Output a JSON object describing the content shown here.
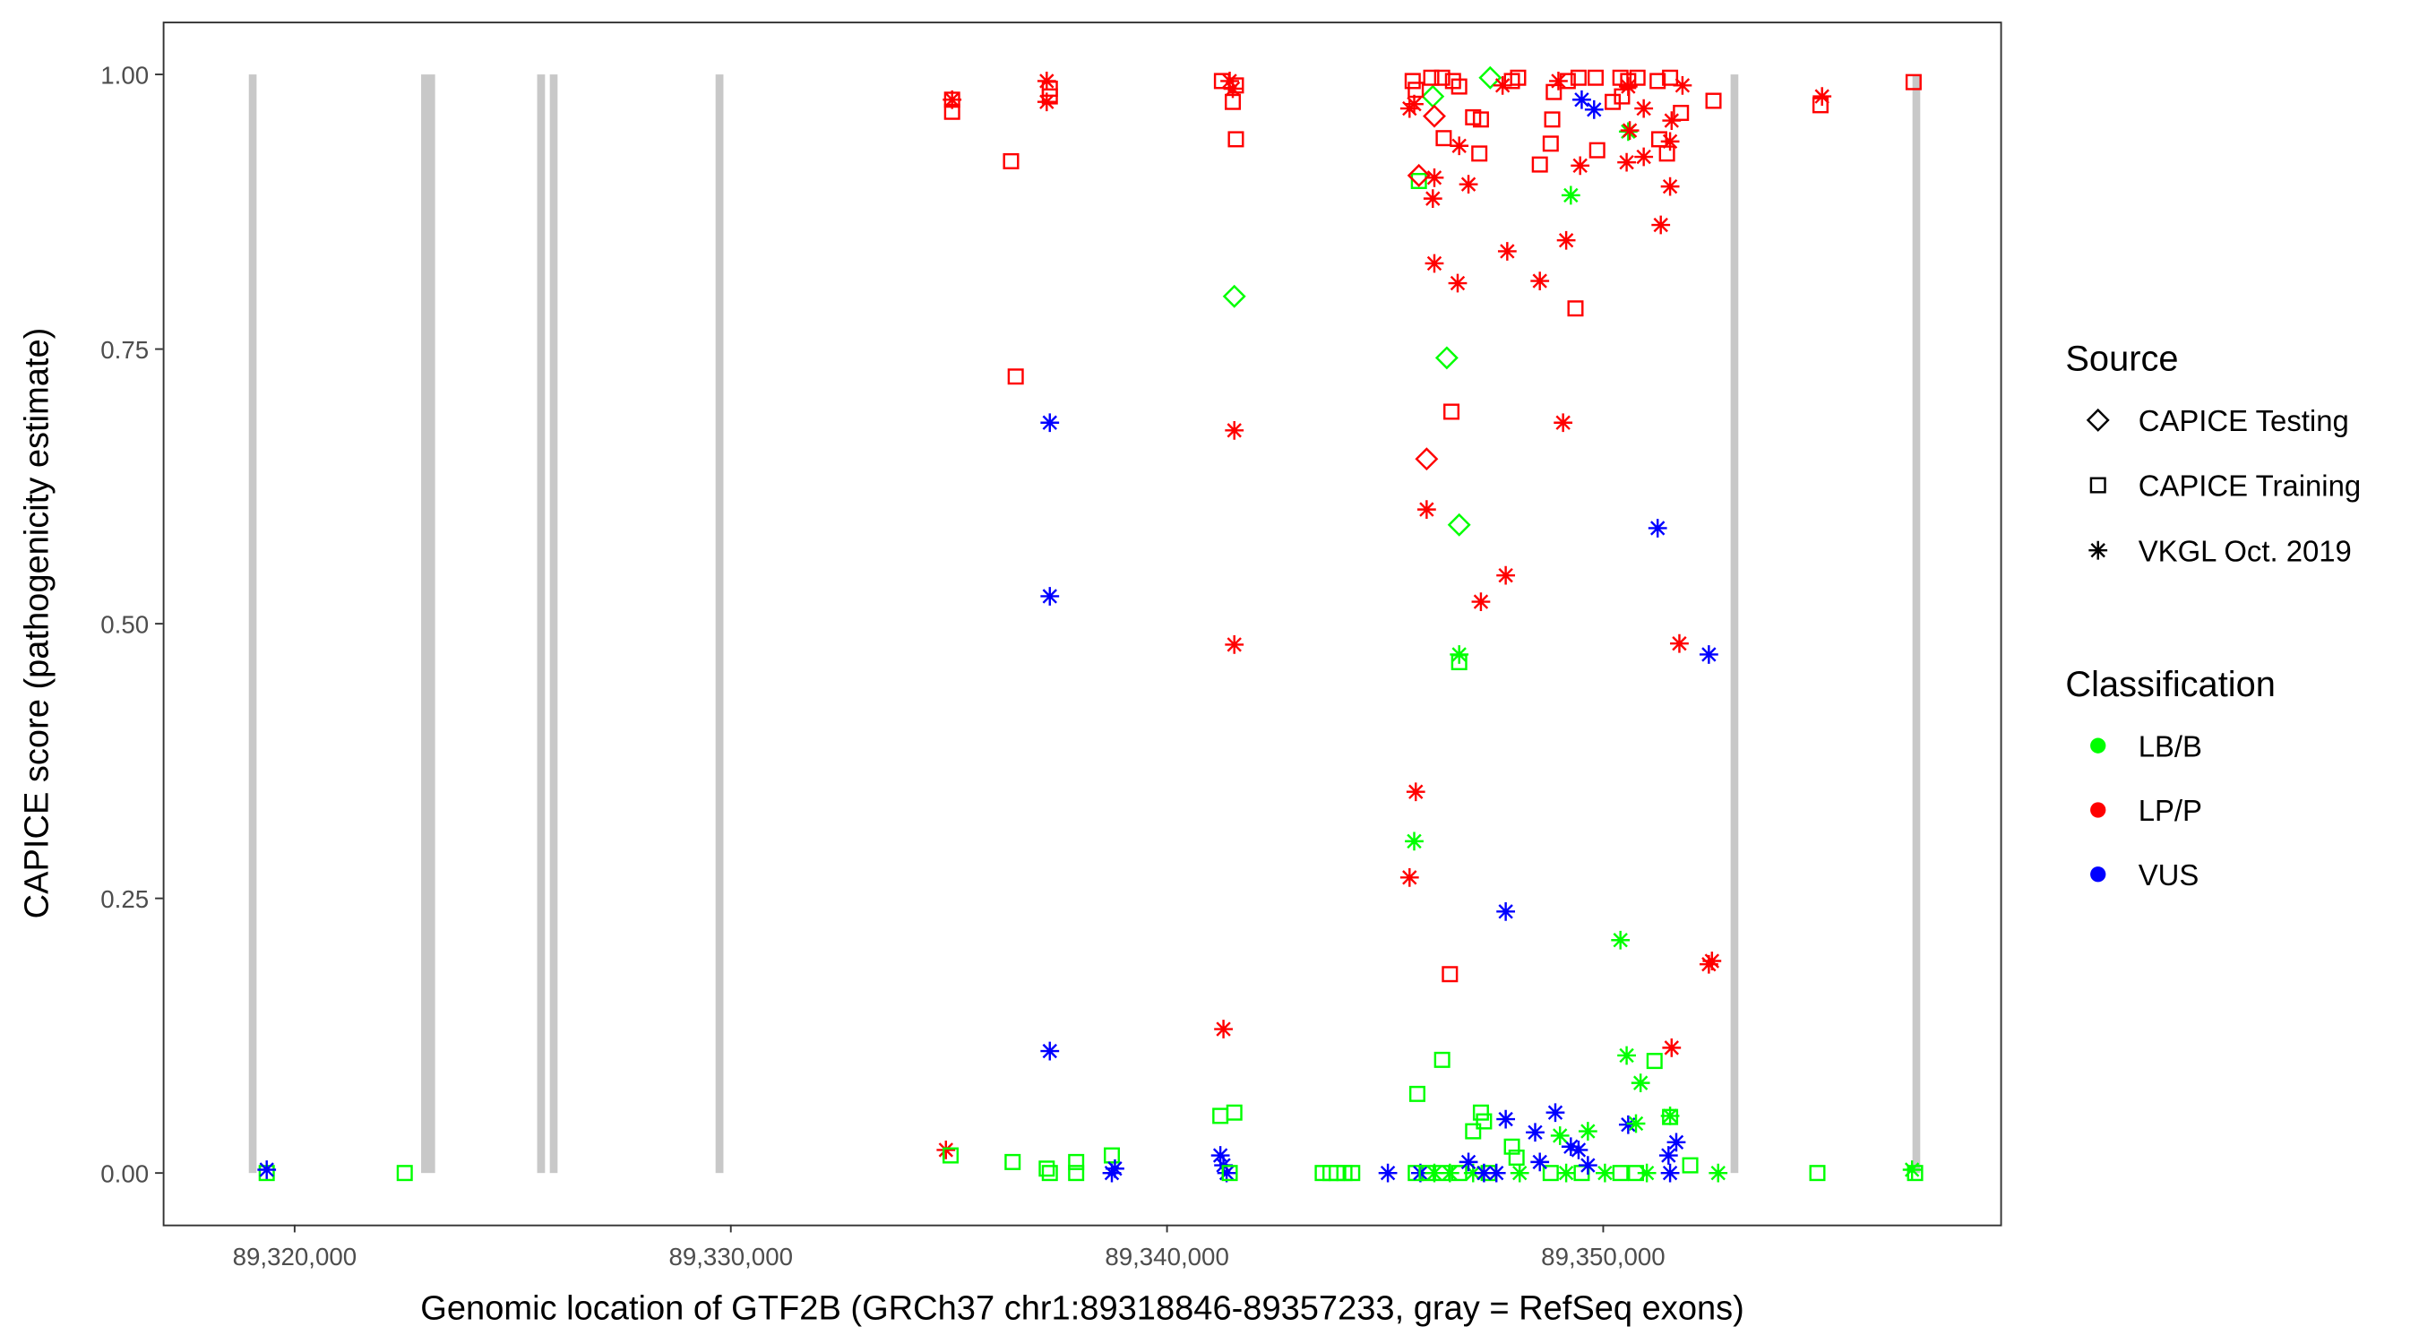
{
  "chart_data": {
    "type": "scatter",
    "xlabel": "Genomic location of GTF2B (GRCh37 chr1:89318846-89357233, gray = RefSeq exons)",
    "ylabel": "CAPICE score (pathogenicity estimate)",
    "xlim": [
      89316978,
      89359104
    ],
    "ylim": [
      -0.047,
      1.048
    ],
    "x_ticks": [
      89320000,
      89330000,
      89340000,
      89350000
    ],
    "x_tick_labels": [
      "89,320,000",
      "89,330,000",
      "89,340,000",
      "89,350,000"
    ],
    "y_ticks": [
      0,
      0.25,
      0.5,
      0.75,
      1.0
    ],
    "y_tick_labels": [
      "0.00",
      "0.25",
      "0.50",
      "0.75",
      "1.00"
    ],
    "grid": false,
    "exons": [
      [
        89318950,
        89319060
      ],
      [
        89322900,
        89323220
      ],
      [
        89325560,
        89325740
      ],
      [
        89325850,
        89326020
      ],
      [
        89329650,
        89329830
      ],
      [
        89352920,
        89353060
      ],
      [
        89357090,
        89357210
      ]
    ],
    "exon_color": "#c8c8c8",
    "legend_position": "right",
    "legend": {
      "source_title": "Source",
      "sources": [
        {
          "label": "CAPICE Testing",
          "shape": "diamond"
        },
        {
          "label": "CAPICE Training",
          "shape": "square"
        },
        {
          "label": "VKGL Oct. 2019",
          "shape": "asterisk"
        }
      ],
      "class_title": "Classification",
      "classes": [
        {
          "label": "LB/B",
          "color": "#00ff00"
        },
        {
          "label": "LP/P",
          "color": "#ff0000"
        },
        {
          "label": "VUS",
          "color": "#0000ff"
        }
      ]
    },
    "point_fields": [
      "position",
      "score",
      "source_index",
      "class_index"
    ],
    "points": [
      [
        89319360,
        0.0,
        1,
        0
      ],
      [
        89319360,
        0.003,
        2,
        2
      ],
      [
        89322524,
        0.0,
        1,
        0
      ],
      [
        89334931,
        0.021,
        2,
        1
      ],
      [
        89335038,
        0.016,
        1,
        0
      ],
      [
        89336460,
        0.01,
        1,
        0
      ],
      [
        89337242,
        0.004,
        1,
        0
      ],
      [
        89337313,
        0.0,
        1,
        0
      ],
      [
        89337917,
        0.01,
        1,
        0
      ],
      [
        89337917,
        0.0,
        1,
        0
      ],
      [
        89338735,
        0.016,
        1,
        0
      ],
      [
        89338735,
        0.0,
        2,
        2
      ],
      [
        89338806,
        0.004,
        2,
        2
      ],
      [
        89341223,
        0.016,
        2,
        2
      ],
      [
        89341294,
        0.007,
        2,
        2
      ],
      [
        89341366,
        0.0,
        2,
        2
      ],
      [
        89341437,
        0.0,
        1,
        0
      ],
      [
        89341223,
        0.052,
        1,
        0
      ],
      [
        89341543,
        0.055,
        1,
        0
      ],
      [
        89341294,
        0.131,
        2,
        1
      ],
      [
        89337313,
        0.111,
        2,
        2
      ],
      [
        89343570,
        0.0,
        1,
        0
      ],
      [
        89343747,
        0.0,
        1,
        0
      ],
      [
        89343890,
        0.0,
        1,
        0
      ],
      [
        89344067,
        0.0,
        1,
        0
      ],
      [
        89344245,
        0.0,
        1,
        0
      ],
      [
        89345063,
        0.0,
        2,
        2
      ],
      [
        89345703,
        0.0,
        1,
        0
      ],
      [
        89345809,
        0.0,
        2,
        2
      ],
      [
        89345952,
        0.0,
        1,
        0
      ],
      [
        89346129,
        0.0,
        2,
        0
      ],
      [
        89346307,
        0.0,
        1,
        0
      ],
      [
        89346485,
        0.0,
        2,
        0
      ],
      [
        89346698,
        0.0,
        1,
        0
      ],
      [
        89347018,
        0.0,
        2,
        0
      ],
      [
        89347374,
        0.0,
        1,
        0
      ],
      [
        89348085,
        0.0,
        2,
        0
      ],
      [
        89348796,
        0.0,
        1,
        0
      ],
      [
        89349151,
        0.0,
        2,
        0
      ],
      [
        89349507,
        0.0,
        1,
        0
      ],
      [
        89350040,
        0.0,
        2,
        0
      ],
      [
        89350395,
        0.0,
        1,
        0
      ],
      [
        89350751,
        0.0,
        1,
        0
      ],
      [
        89351000,
        0.0,
        2,
        0
      ],
      [
        89351995,
        0.007,
        1,
        0
      ],
      [
        89345738,
        0.072,
        1,
        0
      ],
      [
        89346307,
        0.103,
        1,
        0
      ],
      [
        89347196,
        0.055,
        1,
        0
      ],
      [
        89347018,
        0.038,
        1,
        0
      ],
      [
        89347267,
        0.047,
        1,
        0
      ],
      [
        89347907,
        0.024,
        1,
        0
      ],
      [
        89348013,
        0.014,
        1,
        0
      ],
      [
        89346911,
        0.01,
        2,
        2
      ],
      [
        89347765,
        0.049,
        2,
        2
      ],
      [
        89348440,
        0.037,
        2,
        2
      ],
      [
        89348902,
        0.055,
        2,
        2
      ],
      [
        89349258,
        0.024,
        2,
        2
      ],
      [
        89349435,
        0.021,
        2,
        2
      ],
      [
        89348547,
        0.01,
        2,
        2
      ],
      [
        89349649,
        0.007,
        2,
        2
      ],
      [
        89350573,
        0.044,
        2,
        2
      ],
      [
        89351497,
        0.016,
        2,
        2
      ],
      [
        89351675,
        0.028,
        2,
        2
      ],
      [
        89351533,
        0.0,
        2,
        2
      ],
      [
        89347551,
        0.0,
        2,
        2
      ],
      [
        89347267,
        0.0,
        2,
        2
      ],
      [
        89349009,
        0.034,
        2,
        0
      ],
      [
        89349649,
        0.038,
        2,
        0
      ],
      [
        89350537,
        0.107,
        2,
        0
      ],
      [
        89350857,
        0.082,
        2,
        0
      ],
      [
        89350751,
        0.045,
        2,
        0
      ],
      [
        89351533,
        0.052,
        2,
        0
      ],
      [
        89352635,
        0.0,
        2,
        0
      ],
      [
        89350395,
        0.212,
        2,
        0
      ],
      [
        89345667,
        0.302,
        2,
        0
      ],
      [
        89346698,
        0.472,
        2,
        0
      ],
      [
        89349258,
        0.89,
        2,
        0
      ],
      [
        89350573,
        0.948,
        2,
        0
      ],
      [
        89351177,
        0.102,
        1,
        0
      ],
      [
        89351533,
        0.051,
        1,
        0
      ],
      [
        89346698,
        0.465,
        1,
        0
      ],
      [
        89345774,
        0.903,
        1,
        0
      ],
      [
        89341543,
        0.798,
        0,
        0
      ],
      [
        89346414,
        0.742,
        0,
        0
      ],
      [
        89346698,
        0.59,
        0,
        0
      ],
      [
        89346094,
        0.98,
        0,
        0
      ],
      [
        89347409,
        0.997,
        0,
        0
      ],
      [
        89354910,
        0.0,
        1,
        0
      ],
      [
        89357080,
        0.003,
        2,
        0
      ],
      [
        89357150,
        0.0,
        1,
        0
      ],
      [
        89345703,
        0.347,
        2,
        1
      ],
      [
        89345560,
        0.269,
        2,
        1
      ],
      [
        89345952,
        0.604,
        2,
        1
      ],
      [
        89347196,
        0.52,
        2,
        1
      ],
      [
        89347765,
        0.544,
        2,
        1
      ],
      [
        89349080,
        0.683,
        2,
        1
      ],
      [
        89341543,
        0.676,
        2,
        1
      ],
      [
        89341543,
        0.481,
        2,
        1
      ],
      [
        89351746,
        0.482,
        2,
        1
      ],
      [
        89352493,
        0.193,
        2,
        1
      ],
      [
        89352422,
        0.19,
        2,
        1
      ],
      [
        89351568,
        0.114,
        2,
        1
      ],
      [
        89346129,
        0.828,
        2,
        1
      ],
      [
        89346663,
        0.81,
        2,
        1
      ],
      [
        89347800,
        0.839,
        2,
        1
      ],
      [
        89348547,
        0.812,
        2,
        1
      ],
      [
        89349151,
        0.849,
        2,
        1
      ],
      [
        89351320,
        0.863,
        2,
        1
      ],
      [
        89351533,
        0.898,
        2,
        1
      ],
      [
        89349471,
        0.917,
        2,
        1
      ],
      [
        89350537,
        0.92,
        2,
        1
      ],
      [
        89350929,
        0.925,
        2,
        1
      ],
      [
        89346911,
        0.9,
        2,
        1
      ],
      [
        89346129,
        0.906,
        2,
        1
      ],
      [
        89346094,
        0.887,
        2,
        1
      ],
      [
        89346698,
        0.935,
        2,
        1
      ],
      [
        89351533,
        0.939,
        2,
        1
      ],
      [
        89350609,
        0.949,
        2,
        1
      ],
      [
        89351568,
        0.958,
        2,
        1
      ],
      [
        89350929,
        0.969,
        2,
        1
      ],
      [
        89335073,
        0.977,
        2,
        1
      ],
      [
        89337242,
        0.994,
        2,
        1
      ],
      [
        89337242,
        0.975,
        2,
        1
      ],
      [
        89341437,
        0.994,
        2,
        1
      ],
      [
        89341508,
        0.987,
        2,
        1
      ],
      [
        89355017,
        0.98,
        2,
        1
      ],
      [
        89345560,
        0.969,
        2,
        1
      ],
      [
        89345667,
        0.973,
        2,
        1
      ],
      [
        89347693,
        0.99,
        2,
        1
      ],
      [
        89351817,
        0.99,
        2,
        1
      ],
      [
        89350573,
        0.989,
        2,
        1
      ],
      [
        89348973,
        0.994,
        2,
        1
      ],
      [
        89337313,
        0.683,
        2,
        2
      ],
      [
        89337313,
        0.525,
        2,
        2
      ],
      [
        89351248,
        0.587,
        2,
        2
      ],
      [
        89352422,
        0.472,
        2,
        2
      ],
      [
        89347765,
        0.238,
        2,
        2
      ],
      [
        89349791,
        0.968,
        2,
        2
      ],
      [
        89349507,
        0.977,
        2,
        2
      ],
      [
        89335073,
        0.977,
        1,
        1
      ],
      [
        89335073,
        0.966,
        1,
        1
      ],
      [
        89336424,
        0.921,
        1,
        1
      ],
      [
        89336531,
        0.725,
        1,
        1
      ],
      [
        89337313,
        0.987,
        1,
        1
      ],
      [
        89337313,
        0.98,
        1,
        1
      ],
      [
        89341259,
        0.994,
        1,
        1
      ],
      [
        89341579,
        0.99,
        1,
        1
      ],
      [
        89341508,
        0.975,
        1,
        1
      ],
      [
        89341579,
        0.941,
        1,
        1
      ],
      [
        89346520,
        0.693,
        1,
        1
      ],
      [
        89346485,
        0.181,
        1,
        1
      ],
      [
        89349364,
        0.787,
        1,
        1
      ],
      [
        89348547,
        0.918,
        1,
        1
      ],
      [
        89348796,
        0.937,
        1,
        1
      ],
      [
        89349862,
        0.931,
        1,
        1
      ],
      [
        89351284,
        0.941,
        1,
        1
      ],
      [
        89351462,
        0.928,
        1,
        1
      ],
      [
        89351782,
        0.965,
        1,
        1
      ],
      [
        89352528,
        0.976,
        1,
        1
      ],
      [
        89354981,
        0.972,
        1,
        1
      ],
      [
        89357116,
        0.993,
        1,
        1
      ],
      [
        89345632,
        0.994,
        1,
        1
      ],
      [
        89345703,
        0.986,
        1,
        1
      ],
      [
        89346058,
        0.997,
        1,
        1
      ],
      [
        89346307,
        0.997,
        1,
        1
      ],
      [
        89346556,
        0.994,
        1,
        1
      ],
      [
        89346698,
        0.989,
        1,
        1
      ],
      [
        89347018,
        0.961,
        1,
        1
      ],
      [
        89347196,
        0.959,
        1,
        1
      ],
      [
        89347160,
        0.928,
        1,
        1
      ],
      [
        89346343,
        0.942,
        1,
        1
      ],
      [
        89348831,
        0.959,
        1,
        1
      ],
      [
        89348867,
        0.984,
        1,
        1
      ],
      [
        89349187,
        0.994,
        1,
        1
      ],
      [
        89349435,
        0.997,
        1,
        1
      ],
      [
        89349826,
        0.997,
        1,
        1
      ],
      [
        89350395,
        0.997,
        1,
        1
      ],
      [
        89350573,
        0.994,
        1,
        1
      ],
      [
        89350786,
        0.997,
        1,
        1
      ],
      [
        89351248,
        0.994,
        1,
        1
      ],
      [
        89351533,
        0.997,
        1,
        1
      ],
      [
        89350218,
        0.975,
        1,
        1
      ],
      [
        89350431,
        0.98,
        1,
        1
      ],
      [
        89348049,
        0.997,
        1,
        1
      ],
      [
        89347907,
        0.994,
        1,
        1
      ],
      [
        89345774,
        0.908,
        0,
        1
      ],
      [
        89345952,
        0.65,
        0,
        1
      ],
      [
        89346129,
        0.962,
        0,
        1
      ]
    ]
  }
}
